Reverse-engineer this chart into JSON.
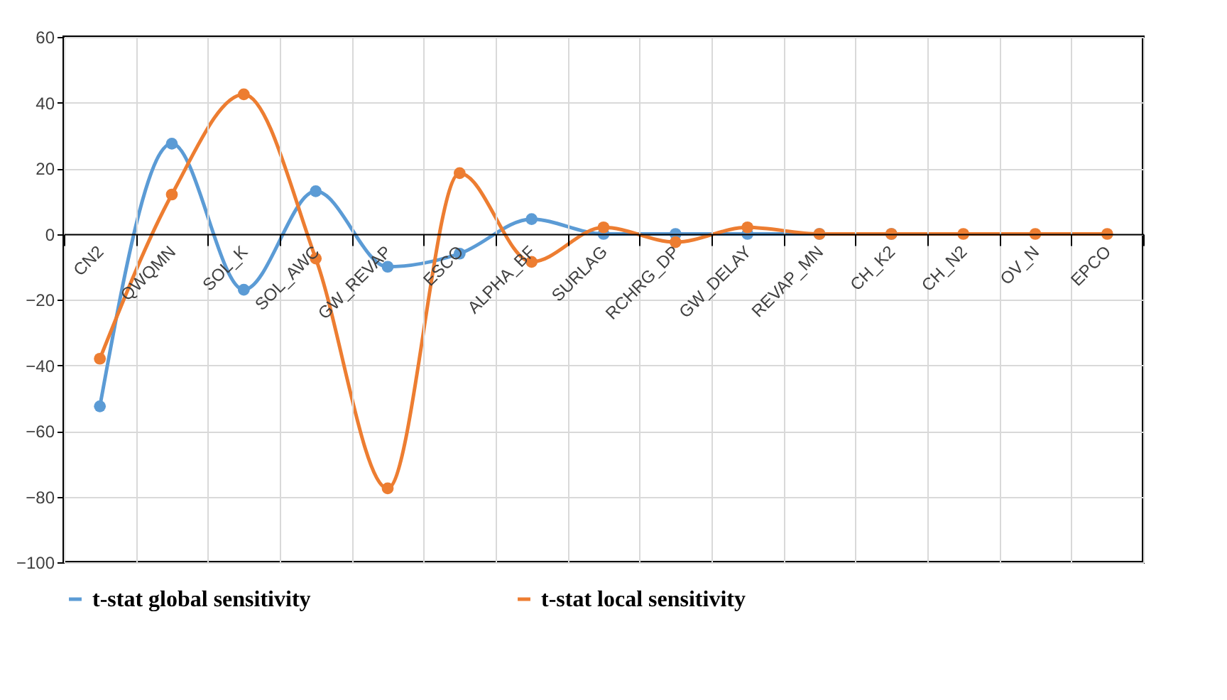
{
  "chart_data": {
    "type": "line",
    "categories": [
      "CN2",
      "QWQMN",
      "SOL_K",
      "SOL_AWC",
      "GW_REVAP",
      "ESCO",
      "ALPHA_BF",
      "SURLAG",
      "RCHRG_DP",
      "GW_DELAY",
      "REVAP_MN",
      "CH_K2",
      "CH_N2",
      "OV_N",
      "EPCO"
    ],
    "series": [
      {
        "name": "t-stat global sensitivity",
        "color": "#5b9bd5",
        "values": [
          -52.5,
          27.5,
          -17,
          13,
          -10,
          -6,
          4.5,
          0,
          0,
          0,
          0,
          0,
          null,
          null,
          null
        ]
      },
      {
        "name": "t-stat local sensitivity",
        "color": "#ed7d31",
        "values": [
          -38,
          12,
          42.5,
          -7.5,
          -77.5,
          18.5,
          -8.5,
          2,
          -2.5,
          2,
          0,
          0,
          0,
          0,
          0
        ]
      }
    ],
    "ylim": [
      -100,
      60
    ],
    "yticks": [
      -100,
      -80,
      -60,
      -40,
      -20,
      0,
      20,
      40,
      60
    ],
    "grid": true,
    "legend": "bottom",
    "marker": "circle",
    "line_style": "solid"
  }
}
